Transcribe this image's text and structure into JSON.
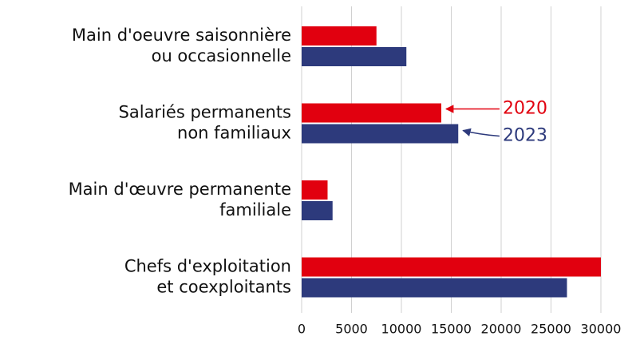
{
  "chart_data": {
    "type": "bar",
    "orientation": "horizontal",
    "categories": [
      [
        "Main d'oeuvre saisonnière",
        "ou occasionnelle"
      ],
      [
        "Salariés permanents",
        "non familiaux"
      ],
      [
        "Main d'œuvre permanente",
        "familiale"
      ],
      [
        "Chefs d'exploitation",
        "et coexploitants"
      ]
    ],
    "series": [
      {
        "name": "2020",
        "color": "#e1000f",
        "values": [
          7500,
          14000,
          2600,
          30000
        ]
      },
      {
        "name": "2023",
        "color": "#2d3a7c",
        "values": [
          10500,
          15700,
          3100,
          26600
        ]
      }
    ],
    "xlim": [
      0,
      30000
    ],
    "xticks": [
      0,
      5000,
      10000,
      15000,
      20000,
      25000,
      30000
    ],
    "grid": true
  }
}
